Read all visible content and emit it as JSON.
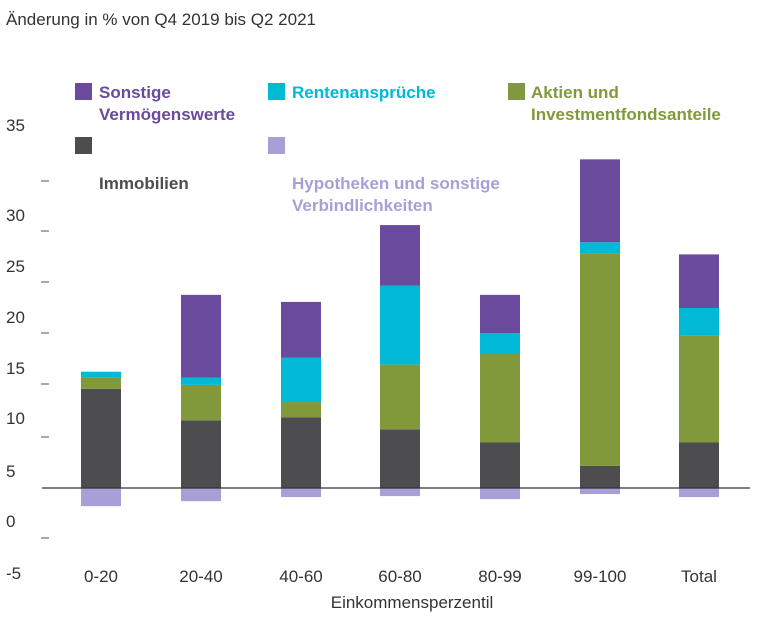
{
  "chart_data": {
    "type": "bar",
    "stacked": true,
    "title": "Änderung in % von Q4 2019 bis Q2 2021",
    "xlabel": "Einkommensperzentil",
    "ylabel": "",
    "ylim": [
      -5,
      35
    ],
    "y_ticks": [
      "35",
      "30",
      "25",
      "20",
      "15",
      "10",
      "5",
      "0",
      "-5"
    ],
    "categories": [
      "0-20",
      "20-40",
      "40-60",
      "60-80",
      "80-99",
      "99-100",
      "Total"
    ],
    "legend_position": "top",
    "series": [
      {
        "name": "Immobilien",
        "color": "#4d4d4f",
        "values": [
          9.8,
          6.7,
          7.0,
          5.8,
          4.5,
          2.2,
          4.5
        ]
      },
      {
        "name": "Aktien und Investmentfondsanteile",
        "color": "#81993a",
        "values": [
          1.1,
          3.5,
          1.5,
          6.4,
          8.8,
          21.0,
          10.6
        ]
      },
      {
        "name": "Rentenansprüche",
        "color": "#00b9d6",
        "values": [
          0.6,
          0.7,
          4.4,
          7.8,
          2.0,
          1.1,
          2.7
        ]
      },
      {
        "name": "Sonstige Vermögenswerte",
        "color": "#6a4a9c",
        "values": [
          0,
          8.2,
          5.5,
          6.0,
          3.8,
          8.2,
          5.3
        ]
      },
      {
        "name": "Hypotheken und sonstige Verbindlichkeiten",
        "color": "#a99fd6",
        "values": [
          -1.8,
          -1.3,
          -0.9,
          -0.8,
          -1.1,
          -0.6,
          -0.9
        ]
      }
    ]
  },
  "legend": [
    {
      "lines": [
        "Sonstige",
        "Vermögenswerte"
      ],
      "color": "#6a4a9c",
      "text_color": "#6a4a9c"
    },
    {
      "lines": [
        "Rentenansprüche"
      ],
      "color": "#00b9d6",
      "text_color": "#00b9d6"
    },
    {
      "lines": [
        "Aktien und",
        "Investmentfondsanteile"
      ],
      "color": "#81993a",
      "text_color": "#81993a"
    },
    {
      "lines": [
        "Immobilien"
      ],
      "color": "#4d4d4f",
      "text_color": "#4d4d4f"
    },
    {
      "lines": [
        "Hypotheken und sonstige",
        "Verbindlichkeiten"
      ],
      "color": "#a99fd6",
      "text_color": "#a99fd6"
    }
  ]
}
